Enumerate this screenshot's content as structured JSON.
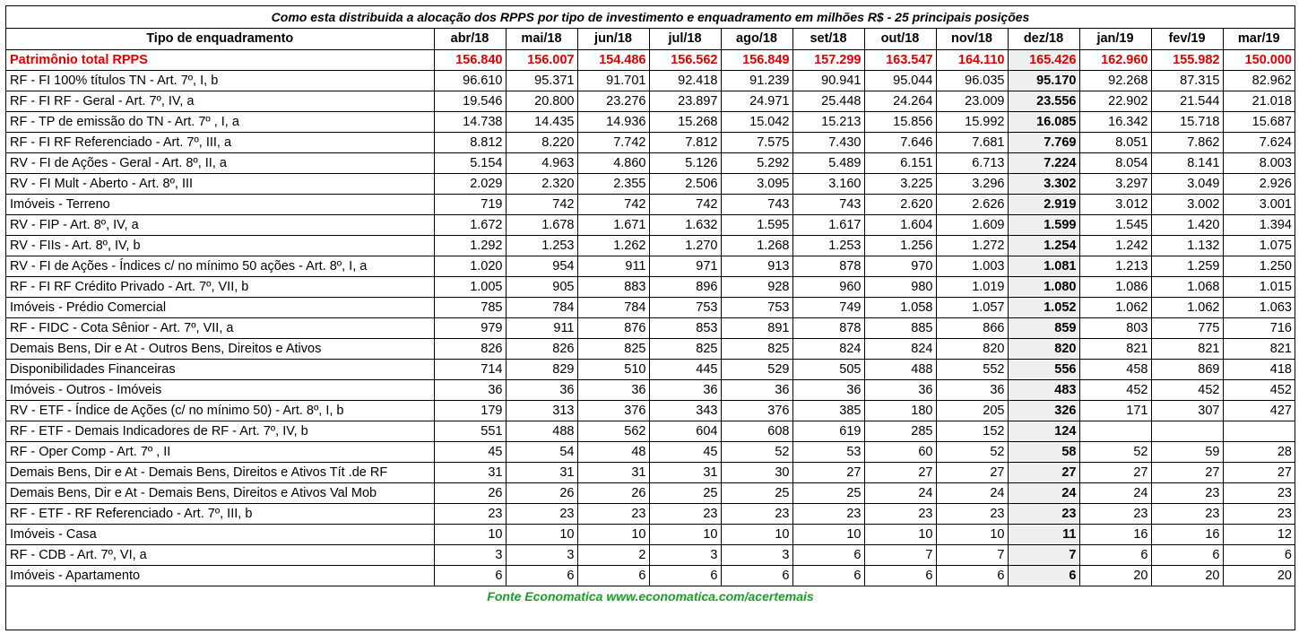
{
  "title": "Como esta distribuida a alocação dos RPPS por tipo de investimento e enquadramento em milhões R$ - 25 principais posições",
  "columns": [
    "Tipo de enquadramento",
    "abr/18",
    "mai/18",
    "jun/18",
    "jul/18",
    "ago/18",
    "set/18",
    "out/18",
    "nov/18",
    "dez/18",
    "jan/19",
    "fev/19",
    "mar/19"
  ],
  "highlight_column_index": 9,
  "total_row": {
    "label": "Patrimônio total RPPS",
    "values": [
      "156.840",
      "156.007",
      "154.486",
      "156.562",
      "156.849",
      "157.299",
      "163.547",
      "164.110",
      "165.426",
      "162.960",
      "155.982",
      "150.000"
    ]
  },
  "rows": [
    {
      "label": "RF - FI 100% títulos TN - Art. 7º, I, b",
      "values": [
        "96.610",
        "95.371",
        "91.701",
        "92.418",
        "91.239",
        "90.941",
        "95.044",
        "96.035",
        "95.170",
        "92.268",
        "87.315",
        "82.962"
      ]
    },
    {
      "label": "RF - FI RF - Geral - Art. 7º, IV, a",
      "values": [
        "19.546",
        "20.800",
        "23.276",
        "23.897",
        "24.971",
        "25.448",
        "24.264",
        "23.009",
        "23.556",
        "22.902",
        "21.544",
        "21.018"
      ]
    },
    {
      "label": "RF - TP de emissão do TN - Art. 7º , I, a",
      "values": [
        "14.738",
        "14.435",
        "14.936",
        "15.268",
        "15.042",
        "15.213",
        "15.856",
        "15.992",
        "16.085",
        "16.342",
        "15.718",
        "15.687"
      ]
    },
    {
      "label": "RF - FI RF Referenciado - Art. 7º, III, a",
      "values": [
        "8.812",
        "8.220",
        "7.742",
        "7.812",
        "7.575",
        "7.430",
        "7.646",
        "7.681",
        "7.769",
        "8.051",
        "7.862",
        "7.624"
      ]
    },
    {
      "label": "RV - FI de Ações - Geral - Art. 8º, II, a",
      "values": [
        "5.154",
        "4.963",
        "4.860",
        "5.126",
        "5.292",
        "5.489",
        "6.151",
        "6.713",
        "7.224",
        "8.054",
        "8.141",
        "8.003"
      ]
    },
    {
      "label": "RV - FI Mult - Aberto - Art. 8º, III",
      "values": [
        "2.029",
        "2.320",
        "2.355",
        "2.506",
        "3.095",
        "3.160",
        "3.225",
        "3.296",
        "3.302",
        "3.297",
        "3.049",
        "2.926"
      ]
    },
    {
      "label": "Imóveis - Terreno",
      "values": [
        "719",
        "742",
        "742",
        "742",
        "743",
        "743",
        "2.620",
        "2.626",
        "2.919",
        "3.012",
        "3.002",
        "3.001"
      ]
    },
    {
      "label": "RV - FIP - Art. 8º, IV, a",
      "values": [
        "1.672",
        "1.678",
        "1.671",
        "1.632",
        "1.595",
        "1.617",
        "1.604",
        "1.609",
        "1.599",
        "1.545",
        "1.420",
        "1.394"
      ]
    },
    {
      "label": "RV - FIIs - Art. 8º, IV, b",
      "values": [
        "1.292",
        "1.253",
        "1.262",
        "1.270",
        "1.268",
        "1.253",
        "1.256",
        "1.272",
        "1.254",
        "1.242",
        "1.132",
        "1.075"
      ]
    },
    {
      "label": "RV - FI de Ações - Índices c/ no mínimo 50 ações - Art. 8º, I, a",
      "values": [
        "1.020",
        "954",
        "911",
        "971",
        "913",
        "878",
        "970",
        "1.003",
        "1.081",
        "1.213",
        "1.259",
        "1.250"
      ]
    },
    {
      "label": "RF - FI RF Crédito Privado - Art. 7º, VII, b",
      "values": [
        "1.005",
        "905",
        "883",
        "896",
        "928",
        "960",
        "980",
        "1.019",
        "1.080",
        "1.086",
        "1.068",
        "1.015"
      ]
    },
    {
      "label": "Imóveis - Prédio Comercial",
      "values": [
        "785",
        "784",
        "784",
        "753",
        "753",
        "749",
        "1.058",
        "1.057",
        "1.052",
        "1.062",
        "1.062",
        "1.063"
      ]
    },
    {
      "label": "RF - FIDC - Cota Sênior - Art. 7º, VII, a",
      "values": [
        "979",
        "911",
        "876",
        "853",
        "891",
        "878",
        "885",
        "866",
        "859",
        "803",
        "775",
        "716"
      ]
    },
    {
      "label": "Demais Bens, Dir e At - Outros Bens, Direitos e Ativos",
      "values": [
        "826",
        "826",
        "825",
        "825",
        "825",
        "824",
        "824",
        "820",
        "820",
        "821",
        "821",
        "821"
      ]
    },
    {
      "label": "Disponibilidades Financeiras",
      "values": [
        "714",
        "829",
        "510",
        "445",
        "529",
        "505",
        "488",
        "552",
        "556",
        "458",
        "869",
        "418"
      ]
    },
    {
      "label": "Imóveis - Outros - Imóveis",
      "values": [
        "36",
        "36",
        "36",
        "36",
        "36",
        "36",
        "36",
        "36",
        "483",
        "452",
        "452",
        "452"
      ]
    },
    {
      "label": "RV - ETF - Índice de Ações (c/ no mínimo 50) - Art. 8º, I, b",
      "values": [
        "179",
        "313",
        "376",
        "343",
        "376",
        "385",
        "180",
        "205",
        "326",
        "171",
        "307",
        "427"
      ]
    },
    {
      "label": "RF - ETF - Demais Indicadores de RF - Art. 7º, IV, b",
      "values": [
        "551",
        "488",
        "562",
        "604",
        "608",
        "619",
        "285",
        "152",
        "124",
        "",
        "",
        ""
      ]
    },
    {
      "label": "RF - Oper Comp - Art. 7º , II",
      "values": [
        "45",
        "54",
        "48",
        "45",
        "52",
        "53",
        "60",
        "52",
        "58",
        "52",
        "59",
        "28"
      ]
    },
    {
      "label": "Demais Bens, Dir e At - Demais Bens, Direitos e Ativos Tít .de RF",
      "values": [
        "31",
        "31",
        "31",
        "31",
        "30",
        "27",
        "27",
        "27",
        "27",
        "27",
        "27",
        "27"
      ]
    },
    {
      "label": "Demais Bens, Dir e At - Demais Bens, Direitos e Ativos Val Mob",
      "values": [
        "26",
        "26",
        "26",
        "25",
        "25",
        "25",
        "24",
        "24",
        "24",
        "24",
        "23",
        "23"
      ]
    },
    {
      "label": "RF - ETF - RF Referenciado - Art. 7º, III, b",
      "values": [
        "23",
        "23",
        "23",
        "23",
        "23",
        "23",
        "23",
        "23",
        "23",
        "23",
        "23",
        "23"
      ]
    },
    {
      "label": "Imóveis - Casa",
      "values": [
        "10",
        "10",
        "10",
        "10",
        "10",
        "10",
        "10",
        "10",
        "11",
        "16",
        "16",
        "12"
      ]
    },
    {
      "label": "RF - CDB - Art. 7º, VI, a",
      "values": [
        "3",
        "3",
        "2",
        "3",
        "3",
        "6",
        "7",
        "7",
        "7",
        "6",
        "6",
        "6"
      ]
    },
    {
      "label": "Imóveis - Apartamento",
      "values": [
        "6",
        "6",
        "6",
        "6",
        "6",
        "6",
        "6",
        "6",
        "6",
        "20",
        "20",
        "20"
      ]
    }
  ],
  "footer": "Fonte Economatica www.economatica.com/acertemais",
  "colors": {
    "total_text": "#e00000",
    "footer_text": "#1a9e2a",
    "highlight_bg": "#efefef"
  }
}
